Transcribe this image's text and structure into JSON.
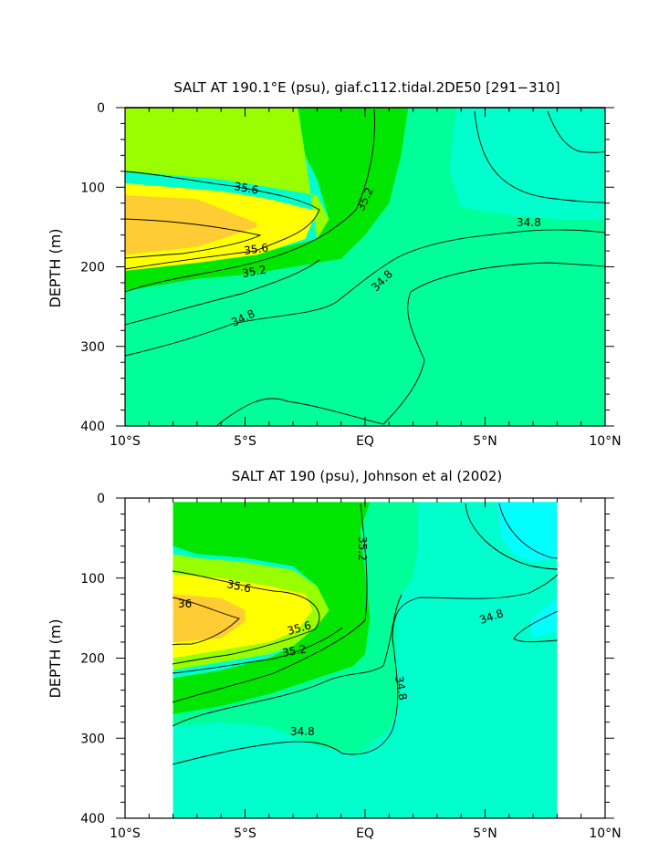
{
  "chart_data": [
    {
      "type": "contour",
      "title": "SALT AT 190.1°E (psu), giaf.c112.tidal.2DE50 [291−310]",
      "ylabel": "DEPTH (m)",
      "xlabel": "",
      "x_ticks": [
        "10°S",
        "5°S",
        "EQ",
        "5°N",
        "10°N"
      ],
      "y_ticks": [
        "0",
        "100",
        "200",
        "300",
        "400"
      ],
      "xlim": [
        -10,
        10
      ],
      "ylim": [
        0,
        400
      ],
      "y_inverted": true,
      "contour_labels": [
        "35.6",
        "35.6",
        "35.2",
        "35.2",
        "34.8",
        "34.8",
        "34.8"
      ],
      "levels": [
        34.6,
        34.8,
        35.0,
        35.2,
        35.4,
        35.6,
        35.8,
        36.0
      ],
      "colors": [
        "#00ffff",
        "#00ffcc",
        "#00ff99",
        "#00e600",
        "#99ff00",
        "#ffff00",
        "#ffcc33"
      ],
      "regions": [
        {
          "level_band": "34.6-34.8",
          "color": "#00ffff",
          "x": [
            -6.5,
            -5,
            -3,
            -1,
            1,
            2,
            2.5,
            2.2,
            1.4,
            1.4,
            2.2,
            4,
            6,
            8,
            10,
            10,
            -6.5
          ],
          "y": [
            400,
            365,
            355,
            370,
            400,
            395,
            370,
            330,
            310,
            270,
            225,
            200,
            185,
            180,
            185,
            400,
            400
          ]
        },
        {
          "level_band": "34.6-34.8",
          "color": "#00ffff",
          "x": [
            7.3,
            8,
            9,
            10,
            10,
            7.3
          ],
          "y": [
            0,
            40,
            55,
            55,
            0,
            0
          ]
        },
        {
          "level_band": "34.8-35.0",
          "color": "#00ffcc",
          "x": [
            3.8,
            3.5,
            4,
            6,
            8,
            10,
            10,
            3.8
          ],
          "y": [
            0,
            80,
            125,
            135,
            140,
            140,
            0,
            0
          ]
        },
        {
          "level_band": "35.0-35.2",
          "color": "#00ff99",
          "x": [
            1.8,
            1.5,
            1,
            0,
            -1,
            -3,
            -5,
            -7,
            -10,
            -10,
            10,
            10,
            8,
            6,
            4,
            3.5,
            3.8,
            1.8
          ],
          "y": [
            0,
            60,
            120,
            160,
            190,
            200,
            210,
            215,
            230,
            400,
            400,
            140,
            140,
            135,
            125,
            80,
            0,
            0
          ]
        },
        {
          "level_band": "35.2-35.4",
          "color": "#00e600",
          "x": [
            -2.8,
            -2.5,
            -2,
            -1.5,
            -2,
            -4,
            -6,
            -8,
            -10,
            -10,
            -7,
            -5,
            -3,
            -1,
            0,
            1,
            1.5,
            1.8,
            -2.8
          ],
          "y": [
            0,
            60,
            90,
            140,
            165,
            180,
            185,
            195,
            200,
            230,
            215,
            210,
            200,
            190,
            160,
            120,
            60,
            0,
            0
          ]
        },
        {
          "level_band": "35.4-35.6",
          "color": "#99ff00",
          "x": [
            -10,
            -10,
            -8,
            -6,
            -4,
            -2,
            -1.5,
            -2,
            -2.5,
            -2.8,
            -10
          ],
          "y": [
            0,
            80,
            85,
            90,
            100,
            110,
            140,
            165,
            60,
            0,
            0
          ]
        },
        {
          "level_band": "35.6-35.8",
          "color": "#ffff00",
          "x": [
            -10,
            -8,
            -6,
            -4,
            -2,
            -2.5,
            -4.5,
            -7,
            -10,
            -10
          ],
          "y": [
            95,
            100,
            105,
            115,
            130,
            165,
            185,
            195,
            205,
            95
          ]
        },
        {
          "level_band": "35.8-36.0",
          "color": "#ffcc33",
          "x": [
            -10,
            -7,
            -4.5,
            -4.5,
            -7,
            -10,
            -10
          ],
          "y": [
            110,
            115,
            145,
            150,
            175,
            185,
            110
          ]
        }
      ]
    },
    {
      "type": "contour",
      "title": "SALT AT 190 (psu), Johnson et al (2002)",
      "ylabel": "DEPTH (m)",
      "xlabel": "",
      "x_ticks": [
        "10°S",
        "5°S",
        "EQ",
        "5°N",
        "10°N"
      ],
      "y_ticks": [
        "0",
        "100",
        "200",
        "300",
        "400"
      ],
      "xlim": [
        -10,
        10
      ],
      "ylim": [
        0,
        400
      ],
      "y_inverted": true,
      "data_xlim": [
        -8,
        8
      ],
      "contour_labels": [
        "35.6",
        "36",
        "35.6",
        "35.2",
        "35.2",
        "34.8",
        "34.8",
        "34.8"
      ],
      "levels": [
        34.6,
        34.8,
        35.0,
        35.2,
        35.4,
        35.6,
        35.8,
        36.0
      ],
      "colors": [
        "#00ffff",
        "#00ffcc",
        "#00ff99",
        "#00e600",
        "#99ff00",
        "#ffff00",
        "#ffcc33"
      ],
      "regions": [
        {
          "level_band": "34.6-34.8",
          "color": "#00ffff",
          "x": [
            5.5,
            5.7,
            6.2,
            7,
            8,
            8,
            5.5
          ],
          "y": [
            5,
            50,
            70,
            80,
            75,
            5,
            5
          ]
        },
        {
          "level_band": "34.6-34.8",
          "color": "#00ffff",
          "x": [
            6,
            7,
            8,
            8,
            7,
            6.3,
            6
          ],
          "y": [
            175,
            150,
            125,
            165,
            175,
            180,
            175
          ]
        },
        {
          "level_band": "34.8-35.0",
          "color": "#00ffcc",
          "x": [
            4,
            4.2,
            5.5,
            7,
            8,
            8,
            7,
            6,
            5,
            3,
            1.3,
            1.3,
            1.5,
            1,
            0.5,
            -0.2,
            -2,
            -4,
            -6,
            -8,
            -8,
            8,
            8,
            7,
            6.2,
            5.7,
            5.5,
            4
          ],
          "y": [
            5,
            45,
            70,
            85,
            95,
            120,
            135,
            150,
            155,
            150,
            155,
            200,
            250,
            290,
            300,
            320,
            310,
            285,
            280,
            285,
            400,
            400,
            165,
            175,
            70,
            50,
            5,
            5
          ]
        },
        {
          "level_band": "35.0-35.2",
          "color": "#00ff99",
          "x": [
            2.2,
            2.2,
            2,
            1.5,
            1.3,
            1.3,
            1.5,
            1,
            0.5,
            -0.2,
            -2,
            -4,
            -6,
            -8,
            -8,
            -6,
            -4,
            -2,
            -0.5,
            0,
            0.2,
            0,
            -0.2,
            0.2,
            2.2
          ],
          "y": [
            5,
            60,
            100,
            120,
            155,
            200,
            250,
            290,
            300,
            320,
            310,
            285,
            280,
            285,
            270,
            260,
            245,
            225,
            210,
            195,
            150,
            90,
            40,
            5,
            5
          ]
        },
        {
          "level_band": "35.2-35.4",
          "color": "#00e600",
          "x": [
            0.2,
            -0.2,
            0,
            0.2,
            0,
            -0.5,
            -2,
            -4,
            -6,
            -8,
            -8,
            -6,
            -4,
            -3,
            -2,
            -1.5,
            -2,
            -3,
            -5,
            -7,
            -8,
            -8,
            0.2
          ],
          "y": [
            5,
            40,
            90,
            150,
            195,
            210,
            225,
            245,
            260,
            270,
            225,
            215,
            200,
            185,
            160,
            140,
            110,
            85,
            75,
            70,
            60,
            5,
            5
          ]
        },
        {
          "level_band": "35.4-35.6",
          "color": "#99ff00",
          "x": [
            -8,
            -7,
            -5,
            -3,
            -2,
            -1.5,
            -2,
            -3,
            -4,
            -6,
            -8,
            -8
          ],
          "y": [
            70,
            75,
            80,
            90,
            110,
            140,
            160,
            185,
            195,
            205,
            215,
            70
          ]
        },
        {
          "level_band": "35.6-35.8",
          "color": "#ffff00",
          "x": [
            -8,
            -6,
            -4,
            -2.5,
            -2.2,
            -2.8,
            -4,
            -6,
            -8,
            -8
          ],
          "y": [
            95,
            100,
            110,
            120,
            140,
            165,
            180,
            190,
            200,
            95
          ]
        },
        {
          "level_band": "35.8-36.0",
          "color": "#ffcc33",
          "x": [
            -8,
            -6,
            -5,
            -5,
            -6,
            -8,
            -8
          ],
          "y": [
            120,
            125,
            140,
            155,
            175,
            180,
            120
          ]
        }
      ]
    }
  ]
}
